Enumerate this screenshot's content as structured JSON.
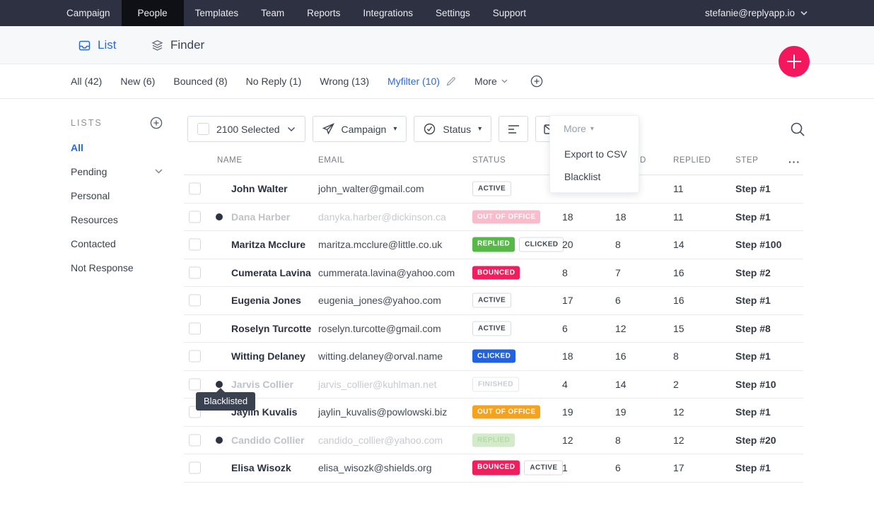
{
  "nav": {
    "items": [
      {
        "label": "Campaign",
        "active": false
      },
      {
        "label": "People",
        "active": true
      },
      {
        "label": "Templates",
        "active": false
      },
      {
        "label": "Team",
        "active": false
      },
      {
        "label": "Reports",
        "active": false
      },
      {
        "label": "Integrations",
        "active": false
      },
      {
        "label": "Settings",
        "active": false
      },
      {
        "label": "Support",
        "active": false
      }
    ],
    "account": {
      "email": "stefanie@replyapp.io"
    }
  },
  "view_tabs": {
    "list": "List",
    "finder": "Finder"
  },
  "fab": {
    "icon": "plus-icon",
    "color": "#f4175e"
  },
  "filters": {
    "items": [
      {
        "label": "All (42)",
        "active": false,
        "editable": false
      },
      {
        "label": "New (6)",
        "active": false,
        "editable": false
      },
      {
        "label": "Bounced (8)",
        "active": false,
        "editable": false
      },
      {
        "label": "No Reply (1)",
        "active": false,
        "editable": false
      },
      {
        "label": "Wrong (13)",
        "active": false,
        "editable": false
      },
      {
        "label": "Myfilter (10)",
        "active": true,
        "editable": true
      }
    ],
    "more_label": "More"
  },
  "sidebar": {
    "title": "LISTS",
    "items": [
      {
        "label": "All",
        "active": true,
        "expandable": false
      },
      {
        "label": "Pending",
        "active": false,
        "expandable": true
      },
      {
        "label": "Personal",
        "active": false,
        "expandable": false
      },
      {
        "label": "Resources",
        "active": false,
        "expandable": false
      },
      {
        "label": "Contacted",
        "active": false,
        "expandable": false
      },
      {
        "label": "Not Response",
        "active": false,
        "expandable": false
      }
    ]
  },
  "toolbar": {
    "select_label": "2100 Selected",
    "campaign_label": "Campaign",
    "status_label": "Status",
    "more_menu": {
      "label": "More",
      "items": [
        "Export to CSV",
        "Blacklist"
      ]
    }
  },
  "table": {
    "headers": {
      "name": "NAME",
      "email": "EMAIL",
      "status": "STATUS",
      "hidden_partial": "D",
      "replied": "REPLIED",
      "step": "STEP",
      "more": "···"
    },
    "rows": [
      {
        "name": "John Walter",
        "email": "john_walter@gmail.com",
        "badges": [
          {
            "label": "ACTIVE",
            "style": "outline"
          }
        ],
        "num1": "",
        "num2": "",
        "replied": "11",
        "step": "Step #1",
        "blacklisted": false
      },
      {
        "name": "Dana Harber",
        "email": "danyka.harber@dickinson.ca",
        "badges": [
          {
            "label": "OUT OF OFFICE",
            "style": "pink-faded"
          }
        ],
        "num1": "18",
        "num2": "18",
        "replied": "11",
        "step": "Step #1",
        "blacklisted": true
      },
      {
        "name": "Maritza Mcclure",
        "email": "maritza.mcclure@little.co.uk",
        "badges": [
          {
            "label": "REPLIED",
            "style": "green"
          },
          {
            "label": "CLICKED",
            "style": "outline"
          }
        ],
        "num1": "20",
        "num2": "8",
        "replied": "14",
        "step": "Step #100",
        "blacklisted": false
      },
      {
        "name": "Cumerata Lavina",
        "email": "cummerata.lavina@yahoo.com",
        "badges": [
          {
            "label": "BOUNCED",
            "style": "pink"
          }
        ],
        "num1": "8",
        "num2": "7",
        "replied": "16",
        "step": "Step #2",
        "blacklisted": false
      },
      {
        "name": "Eugenia Jones",
        "email": "eugenia_jones@yahoo.com",
        "badges": [
          {
            "label": "ACTIVE",
            "style": "outline"
          }
        ],
        "num1": "17",
        "num2": "6",
        "replied": "16",
        "step": "Step #1",
        "blacklisted": false
      },
      {
        "name": "Roselyn Turcotte",
        "email": "roselyn.turcotte@gmail.com",
        "badges": [
          {
            "label": "ACTIVE",
            "style": "outline"
          }
        ],
        "num1": "6",
        "num2": "12",
        "replied": "15",
        "step": "Step #8",
        "blacklisted": false
      },
      {
        "name": "Witting Delaney",
        "email": "witting.delaney@orval.name",
        "badges": [
          {
            "label": "CLICKED",
            "style": "blue"
          }
        ],
        "num1": "18",
        "num2": "16",
        "replied": "8",
        "step": "Step #1",
        "blacklisted": false
      },
      {
        "name": "Jarvis Collier",
        "email": "jarvis_collier@kuhlman.net",
        "badges": [
          {
            "label": "FINISHED",
            "style": "finished"
          }
        ],
        "num1": "4",
        "num2": "14",
        "replied": "2",
        "step": "Step #10",
        "blacklisted": true
      },
      {
        "name": "Jaylin Kuvalis",
        "email": "jaylin_kuvalis@powlowski.biz",
        "badges": [
          {
            "label": "OUT OF OFFICE",
            "style": "orange"
          }
        ],
        "num1": "19",
        "num2": "19",
        "replied": "12",
        "step": "Step #1",
        "blacklisted": false
      },
      {
        "name": "Candido Collier",
        "email": "candido_collier@yahoo.com",
        "badges": [
          {
            "label": "REPLIED",
            "style": "green-faded"
          }
        ],
        "num1": "12",
        "num2": "8",
        "replied": "12",
        "step": "Step #20",
        "blacklisted": true
      },
      {
        "name": "Elisa Wisozk",
        "email": "elisa_wisozk@shields.org",
        "badges": [
          {
            "label": "BOUNCED",
            "style": "pink"
          },
          {
            "label": "ACTIVE",
            "style": "outline"
          }
        ],
        "num1": "1",
        "num2": "6",
        "replied": "17",
        "step": "Step #1",
        "blacklisted": false
      }
    ]
  },
  "tooltip": {
    "text": "Blacklisted"
  },
  "colors": {
    "nav_bg": "#2d3142",
    "nav_active_bg": "#0e1016",
    "accent_blue": "#2b6bd9",
    "fab_pink": "#f4175e",
    "badge_green": "#56b947",
    "badge_blue": "#2162e0",
    "badge_orange": "#f6a21d",
    "badge_pink": "#f01e5f"
  }
}
